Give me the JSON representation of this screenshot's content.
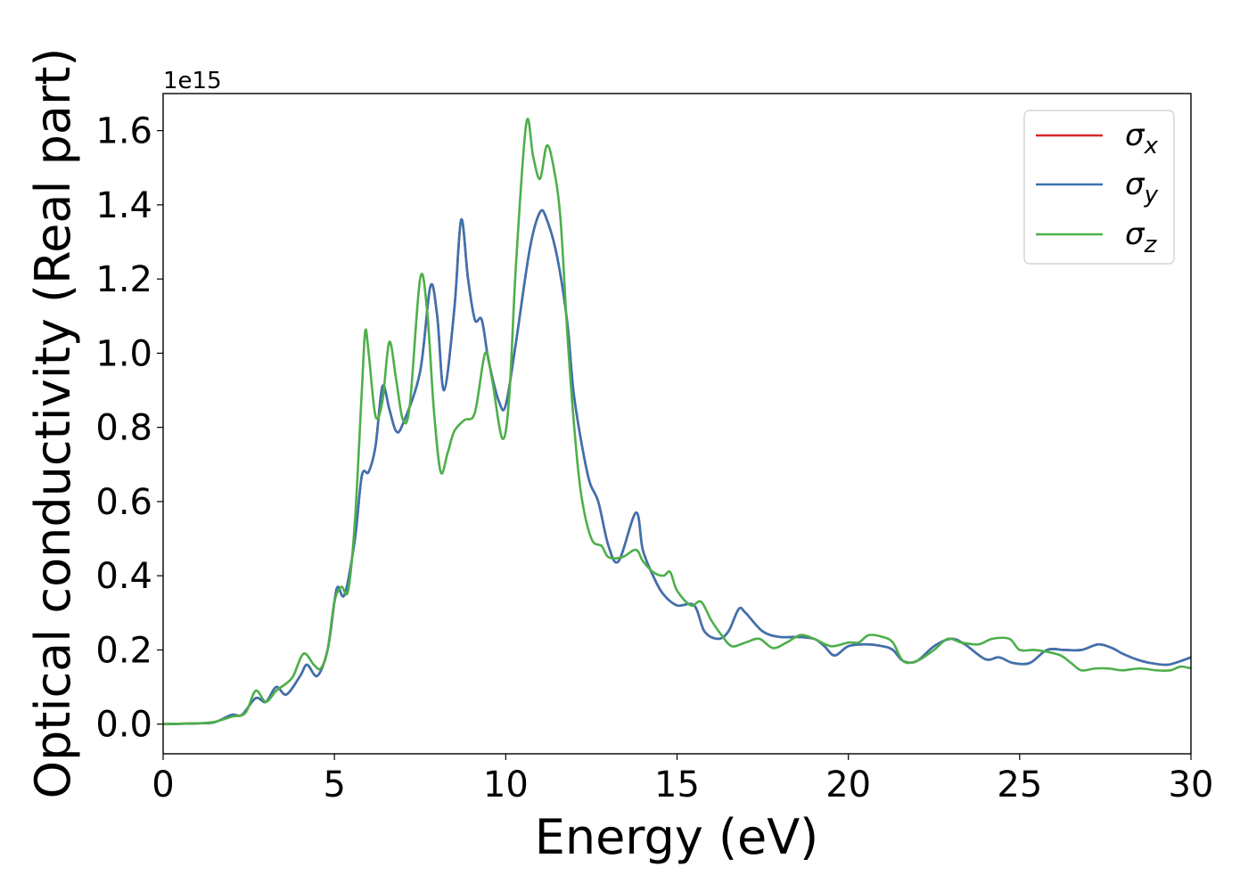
{
  "chart_data": {
    "type": "line",
    "title": "",
    "xlabel": "Energy (eV)",
    "ylabel": "Optical conductivity (Real part)",
    "y_offset_text": "1e15",
    "xlim": [
      0,
      30
    ],
    "ylim": [
      -0.08,
      1.7
    ],
    "x_ticks": [
      0,
      5,
      10,
      15,
      20,
      25,
      30
    ],
    "x_tick_labels": [
      "0",
      "5",
      "10",
      "15",
      "20",
      "25",
      "30"
    ],
    "y_ticks": [
      0.0,
      0.2,
      0.4,
      0.6,
      0.8,
      1.0,
      1.2,
      1.4,
      1.6
    ],
    "y_tick_labels": [
      "0.0",
      "0.2",
      "0.4",
      "0.6",
      "0.8",
      "1.0",
      "1.2",
      "1.4",
      "1.6"
    ],
    "grid": false,
    "legend_position": "top-right",
    "series": [
      {
        "name": "σx",
        "legend_base": "σ",
        "legend_sub": "x",
        "color": "#d62728",
        "points": [
          [
            0,
            0
          ],
          [
            1,
            0.002
          ],
          [
            1.5,
            0.005
          ],
          [
            2,
            0.025
          ],
          [
            2.3,
            0.025
          ],
          [
            2.7,
            0.07
          ],
          [
            3,
            0.06
          ],
          [
            3.3,
            0.1
          ],
          [
            3.6,
            0.08
          ],
          [
            4,
            0.13
          ],
          [
            4.2,
            0.16
          ],
          [
            4.5,
            0.13
          ],
          [
            4.8,
            0.2
          ],
          [
            5,
            0.33
          ],
          [
            5.1,
            0.37
          ],
          [
            5.3,
            0.35
          ],
          [
            5.6,
            0.5
          ],
          [
            5.8,
            0.67
          ],
          [
            6,
            0.68
          ],
          [
            6.2,
            0.75
          ],
          [
            6.4,
            0.91
          ],
          [
            6.6,
            0.85
          ],
          [
            6.8,
            0.79
          ],
          [
            7,
            0.81
          ],
          [
            7.5,
            0.95
          ],
          [
            7.8,
            1.18
          ],
          [
            8,
            1.1
          ],
          [
            8.2,
            0.9
          ],
          [
            8.5,
            1.12
          ],
          [
            8.7,
            1.36
          ],
          [
            8.9,
            1.2
          ],
          [
            9.1,
            1.09
          ],
          [
            9.3,
            1.09
          ],
          [
            9.5,
            0.98
          ],
          [
            9.8,
            0.87
          ],
          [
            10,
            0.86
          ],
          [
            10.3,
            1.03
          ],
          [
            10.7,
            1.28
          ],
          [
            11,
            1.38
          ],
          [
            11.2,
            1.36
          ],
          [
            11.5,
            1.26
          ],
          [
            11.8,
            1.08
          ],
          [
            12,
            0.88
          ],
          [
            12.4,
            0.67
          ],
          [
            12.7,
            0.6
          ],
          [
            13,
            0.48
          ],
          [
            13.3,
            0.44
          ],
          [
            13.8,
            0.57
          ],
          [
            14,
            0.47
          ],
          [
            14.3,
            0.4
          ],
          [
            14.6,
            0.35
          ],
          [
            15,
            0.32
          ],
          [
            15.5,
            0.32
          ],
          [
            15.8,
            0.25
          ],
          [
            16.2,
            0.23
          ],
          [
            16.5,
            0.25
          ],
          [
            16.8,
            0.31
          ],
          [
            17,
            0.3
          ],
          [
            17.5,
            0.25
          ],
          [
            18,
            0.235
          ],
          [
            18.5,
            0.235
          ],
          [
            19,
            0.23
          ],
          [
            19.3,
            0.21
          ],
          [
            19.6,
            0.185
          ],
          [
            20,
            0.21
          ],
          [
            20.5,
            0.215
          ],
          [
            21,
            0.21
          ],
          [
            21.3,
            0.2
          ],
          [
            21.6,
            0.17
          ],
          [
            22,
            0.17
          ],
          [
            22.5,
            0.21
          ],
          [
            23,
            0.23
          ],
          [
            23.4,
            0.215
          ],
          [
            24,
            0.175
          ],
          [
            24.4,
            0.18
          ],
          [
            24.8,
            0.165
          ],
          [
            25.3,
            0.165
          ],
          [
            25.8,
            0.2
          ],
          [
            26.3,
            0.2
          ],
          [
            26.8,
            0.2
          ],
          [
            27.3,
            0.215
          ],
          [
            27.7,
            0.205
          ],
          [
            28,
            0.19
          ],
          [
            28.4,
            0.175
          ],
          [
            28.8,
            0.165
          ],
          [
            29.3,
            0.16
          ],
          [
            29.7,
            0.17
          ],
          [
            30,
            0.18
          ]
        ]
      },
      {
        "name": "σy",
        "legend_base": "σ",
        "legend_sub": "y",
        "color": "#3b72b0",
        "points": [
          [
            0,
            0
          ],
          [
            1,
            0.002
          ],
          [
            1.5,
            0.005
          ],
          [
            2,
            0.025
          ],
          [
            2.3,
            0.025
          ],
          [
            2.7,
            0.07
          ],
          [
            3,
            0.06
          ],
          [
            3.3,
            0.1
          ],
          [
            3.6,
            0.08
          ],
          [
            4,
            0.13
          ],
          [
            4.2,
            0.16
          ],
          [
            4.5,
            0.13
          ],
          [
            4.8,
            0.2
          ],
          [
            5,
            0.33
          ],
          [
            5.1,
            0.37
          ],
          [
            5.3,
            0.35
          ],
          [
            5.6,
            0.5
          ],
          [
            5.8,
            0.67
          ],
          [
            6,
            0.68
          ],
          [
            6.2,
            0.75
          ],
          [
            6.4,
            0.91
          ],
          [
            6.6,
            0.85
          ],
          [
            6.8,
            0.79
          ],
          [
            7,
            0.81
          ],
          [
            7.5,
            0.95
          ],
          [
            7.8,
            1.18
          ],
          [
            8,
            1.1
          ],
          [
            8.2,
            0.9
          ],
          [
            8.5,
            1.12
          ],
          [
            8.7,
            1.36
          ],
          [
            8.9,
            1.2
          ],
          [
            9.1,
            1.09
          ],
          [
            9.3,
            1.09
          ],
          [
            9.5,
            0.98
          ],
          [
            9.8,
            0.87
          ],
          [
            10,
            0.86
          ],
          [
            10.3,
            1.03
          ],
          [
            10.7,
            1.28
          ],
          [
            11,
            1.38
          ],
          [
            11.2,
            1.36
          ],
          [
            11.5,
            1.26
          ],
          [
            11.8,
            1.08
          ],
          [
            12,
            0.88
          ],
          [
            12.4,
            0.67
          ],
          [
            12.7,
            0.6
          ],
          [
            13,
            0.48
          ],
          [
            13.3,
            0.44
          ],
          [
            13.8,
            0.57
          ],
          [
            14,
            0.47
          ],
          [
            14.3,
            0.4
          ],
          [
            14.6,
            0.35
          ],
          [
            15,
            0.32
          ],
          [
            15.5,
            0.32
          ],
          [
            15.8,
            0.25
          ],
          [
            16.2,
            0.23
          ],
          [
            16.5,
            0.25
          ],
          [
            16.8,
            0.31
          ],
          [
            17,
            0.3
          ],
          [
            17.5,
            0.25
          ],
          [
            18,
            0.235
          ],
          [
            18.5,
            0.235
          ],
          [
            19,
            0.23
          ],
          [
            19.3,
            0.21
          ],
          [
            19.6,
            0.185
          ],
          [
            20,
            0.21
          ],
          [
            20.5,
            0.215
          ],
          [
            21,
            0.21
          ],
          [
            21.3,
            0.2
          ],
          [
            21.6,
            0.17
          ],
          [
            22,
            0.17
          ],
          [
            22.5,
            0.21
          ],
          [
            23,
            0.23
          ],
          [
            23.4,
            0.215
          ],
          [
            24,
            0.175
          ],
          [
            24.4,
            0.18
          ],
          [
            24.8,
            0.165
          ],
          [
            25.3,
            0.165
          ],
          [
            25.8,
            0.2
          ],
          [
            26.3,
            0.2
          ],
          [
            26.8,
            0.2
          ],
          [
            27.3,
            0.215
          ],
          [
            27.7,
            0.205
          ],
          [
            28,
            0.19
          ],
          [
            28.4,
            0.175
          ],
          [
            28.8,
            0.165
          ],
          [
            29.3,
            0.16
          ],
          [
            29.7,
            0.17
          ],
          [
            30,
            0.18
          ]
        ]
      },
      {
        "name": "σz",
        "legend_base": "σ",
        "legend_sub": "z",
        "color": "#4daf4a",
        "points": [
          [
            0,
            0
          ],
          [
            1,
            0.002
          ],
          [
            1.5,
            0.006
          ],
          [
            2,
            0.02
          ],
          [
            2.4,
            0.03
          ],
          [
            2.7,
            0.09
          ],
          [
            3,
            0.06
          ],
          [
            3.3,
            0.09
          ],
          [
            3.6,
            0.11
          ],
          [
            3.8,
            0.13
          ],
          [
            4.1,
            0.19
          ],
          [
            4.4,
            0.16
          ],
          [
            4.6,
            0.15
          ],
          [
            4.8,
            0.2
          ],
          [
            5,
            0.33
          ],
          [
            5.2,
            0.37
          ],
          [
            5.4,
            0.36
          ],
          [
            5.6,
            0.55
          ],
          [
            5.8,
            0.9
          ],
          [
            5.9,
            1.06
          ],
          [
            6,
            1.0
          ],
          [
            6.2,
            0.83
          ],
          [
            6.4,
            0.87
          ],
          [
            6.6,
            1.03
          ],
          [
            6.8,
            0.93
          ],
          [
            7,
            0.82
          ],
          [
            7.2,
            0.86
          ],
          [
            7.5,
            1.2
          ],
          [
            7.7,
            1.12
          ],
          [
            7.9,
            0.85
          ],
          [
            8.1,
            0.68
          ],
          [
            8.3,
            0.73
          ],
          [
            8.5,
            0.79
          ],
          [
            8.8,
            0.82
          ],
          [
            9.1,
            0.84
          ],
          [
            9.4,
            1.0
          ],
          [
            9.6,
            0.93
          ],
          [
            9.9,
            0.77
          ],
          [
            10.1,
            0.88
          ],
          [
            10.3,
            1.24
          ],
          [
            10.6,
            1.62
          ],
          [
            10.8,
            1.53
          ],
          [
            11,
            1.47
          ],
          [
            11.2,
            1.56
          ],
          [
            11.4,
            1.5
          ],
          [
            11.6,
            1.36
          ],
          [
            11.8,
            1.05
          ],
          [
            12,
            0.8
          ],
          [
            12.2,
            0.62
          ],
          [
            12.5,
            0.5
          ],
          [
            12.8,
            0.48
          ],
          [
            13,
            0.45
          ],
          [
            13.4,
            0.45
          ],
          [
            13.8,
            0.47
          ],
          [
            14,
            0.44
          ],
          [
            14.3,
            0.41
          ],
          [
            14.6,
            0.4
          ],
          [
            14.8,
            0.41
          ],
          [
            15,
            0.36
          ],
          [
            15.4,
            0.32
          ],
          [
            15.7,
            0.33
          ],
          [
            16,
            0.28
          ],
          [
            16.3,
            0.24
          ],
          [
            16.6,
            0.21
          ],
          [
            17,
            0.22
          ],
          [
            17.4,
            0.23
          ],
          [
            17.8,
            0.205
          ],
          [
            18.2,
            0.22
          ],
          [
            18.6,
            0.24
          ],
          [
            19,
            0.23
          ],
          [
            19.5,
            0.21
          ],
          [
            20,
            0.22
          ],
          [
            20.3,
            0.22
          ],
          [
            20.6,
            0.24
          ],
          [
            21,
            0.235
          ],
          [
            21.3,
            0.22
          ],
          [
            21.6,
            0.17
          ],
          [
            22,
            0.17
          ],
          [
            22.5,
            0.2
          ],
          [
            22.9,
            0.23
          ],
          [
            23.3,
            0.22
          ],
          [
            23.8,
            0.215
          ],
          [
            24.2,
            0.23
          ],
          [
            24.7,
            0.23
          ],
          [
            25,
            0.2
          ],
          [
            25.4,
            0.2
          ],
          [
            25.8,
            0.195
          ],
          [
            26.2,
            0.185
          ],
          [
            26.5,
            0.165
          ],
          [
            26.8,
            0.145
          ],
          [
            27.2,
            0.15
          ],
          [
            27.6,
            0.15
          ],
          [
            28,
            0.145
          ],
          [
            28.5,
            0.15
          ],
          [
            29,
            0.145
          ],
          [
            29.4,
            0.145
          ],
          [
            29.7,
            0.155
          ],
          [
            30,
            0.15
          ]
        ]
      }
    ]
  }
}
